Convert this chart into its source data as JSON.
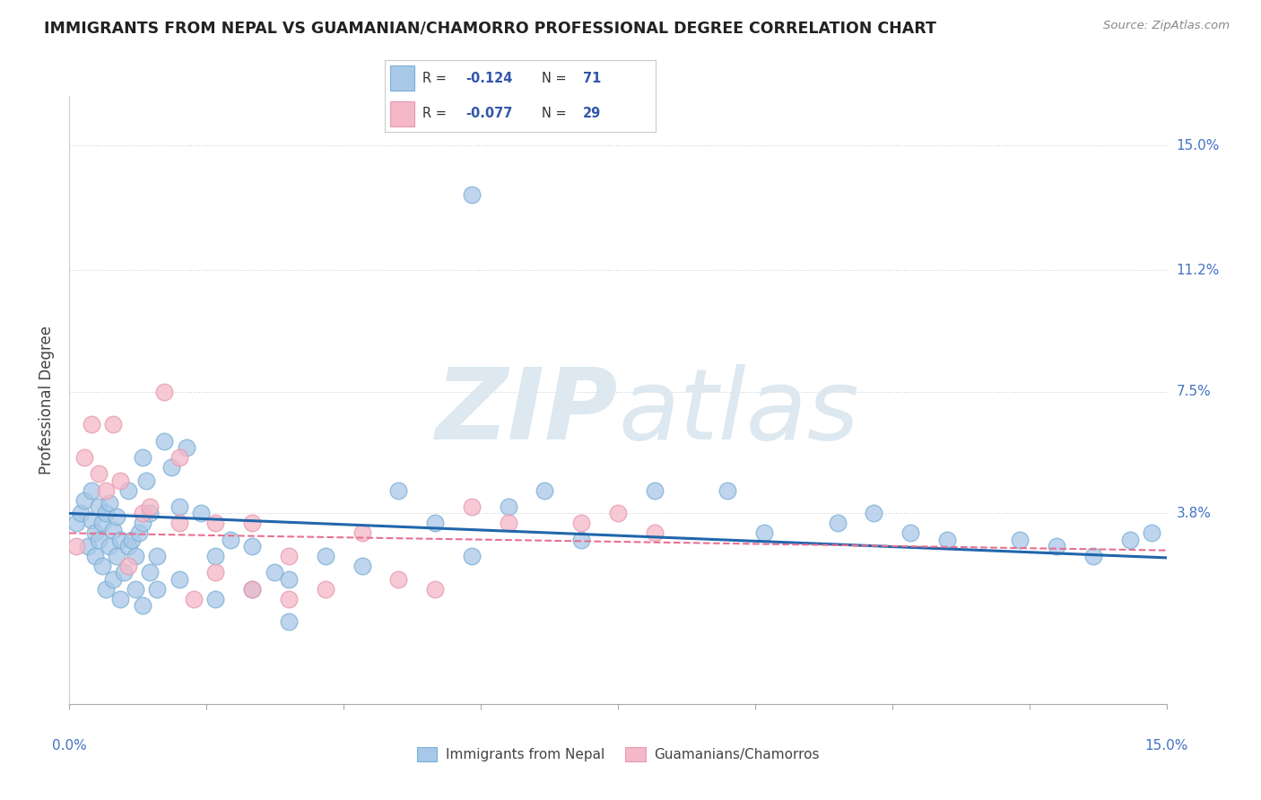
{
  "title": "IMMIGRANTS FROM NEPAL VS GUAMANIAN/CHAMORRO PROFESSIONAL DEGREE CORRELATION CHART",
  "source": "Source: ZipAtlas.com",
  "ylabel": "Professional Degree",
  "xlim": [
    0.0,
    15.0
  ],
  "ylim": [
    -2.0,
    16.5
  ],
  "ytick_vals": [
    3.8,
    7.5,
    11.2,
    15.0
  ],
  "ytick_labels": [
    "3.8%",
    "7.5%",
    "11.2%",
    "15.0%"
  ],
  "nepal_R": "-0.124",
  "nepal_N": "71",
  "chamorro_R": "-0.077",
  "chamorro_N": "29",
  "blue_color": "#a8c8e8",
  "blue_edge_color": "#7bafd4",
  "pink_color": "#f4b8c8",
  "pink_edge_color": "#e898b0",
  "blue_line_color": "#2166ac",
  "pink_line_color": "#e87090",
  "watermark_color": "#dde8f0",
  "nepal_line_intercept": 3.8,
  "nepal_line_slope": -0.09,
  "chamorro_line_intercept": 3.2,
  "chamorro_line_slope": -0.035,
  "nepal_x": [
    0.1,
    0.15,
    0.2,
    0.25,
    0.3,
    0.3,
    0.35,
    0.35,
    0.4,
    0.4,
    0.45,
    0.45,
    0.5,
    0.5,
    0.55,
    0.55,
    0.6,
    0.6,
    0.65,
    0.65,
    0.7,
    0.7,
    0.75,
    0.8,
    0.8,
    0.85,
    0.9,
    0.9,
    0.95,
    1.0,
    1.0,
    1.0,
    1.05,
    1.1,
    1.1,
    1.2,
    1.2,
    1.3,
    1.4,
    1.5,
    1.5,
    1.6,
    1.8,
    2.0,
    2.0,
    2.2,
    2.5,
    2.5,
    2.8,
    3.0,
    3.0,
    3.5,
    4.0,
    4.5,
    5.0,
    5.5,
    6.0,
    6.5,
    7.0,
    8.0,
    9.0,
    9.5,
    10.5,
    11.0,
    11.5,
    12.0,
    13.0,
    13.5,
    14.0,
    14.5,
    14.8
  ],
  "nepal_y": [
    3.5,
    3.8,
    4.2,
    2.8,
    3.6,
    4.5,
    3.2,
    2.5,
    3.0,
    4.0,
    2.2,
    3.5,
    3.8,
    1.5,
    2.8,
    4.1,
    3.3,
    1.8,
    2.5,
    3.7,
    3.0,
    1.2,
    2.0,
    4.5,
    2.8,
    3.0,
    2.5,
    1.5,
    3.2,
    5.5,
    3.5,
    1.0,
    4.8,
    2.0,
    3.8,
    2.5,
    1.5,
    6.0,
    5.2,
    4.0,
    1.8,
    5.8,
    3.8,
    2.5,
    1.2,
    3.0,
    2.8,
    1.5,
    2.0,
    1.8,
    0.5,
    2.5,
    2.2,
    4.5,
    3.5,
    2.5,
    4.0,
    4.5,
    3.0,
    4.5,
    4.5,
    3.2,
    3.5,
    3.8,
    3.2,
    3.0,
    3.0,
    2.8,
    2.5,
    3.0,
    3.2
  ],
  "nepal_outlier_x": [
    5.5
  ],
  "nepal_outlier_y": [
    13.5
  ],
  "chamorro_x": [
    0.1,
    0.2,
    0.3,
    0.4,
    0.5,
    0.6,
    0.7,
    0.8,
    1.0,
    1.1,
    1.3,
    1.5,
    1.5,
    1.7,
    2.0,
    2.0,
    2.5,
    2.5,
    3.0,
    3.0,
    3.5,
    4.0,
    4.5,
    5.0,
    5.5,
    6.0,
    7.0,
    7.5,
    8.0
  ],
  "chamorro_y": [
    2.8,
    5.5,
    6.5,
    5.0,
    4.5,
    6.5,
    4.8,
    2.2,
    3.8,
    4.0,
    7.5,
    3.5,
    5.5,
    1.2,
    3.5,
    2.0,
    1.5,
    3.5,
    2.5,
    1.2,
    1.5,
    3.2,
    1.8,
    1.5,
    4.0,
    3.5,
    3.5,
    3.8,
    3.2
  ]
}
